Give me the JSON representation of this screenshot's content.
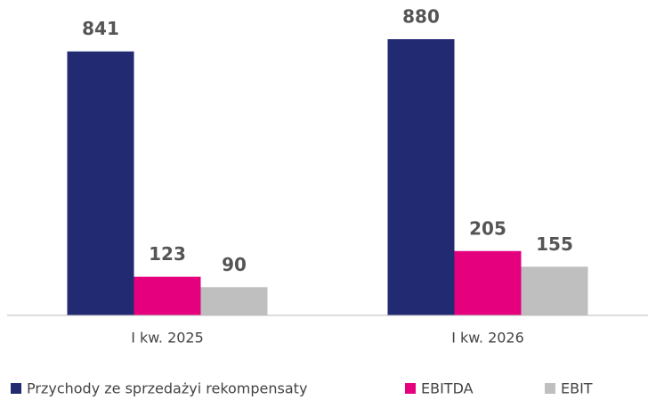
{
  "chart_data": {
    "type": "bar",
    "categories": [
      "I kw. 2025",
      "I kw. 2026"
    ],
    "series": [
      {
        "name": "Przychody ze sprzedażyi rekompensaty",
        "color": "#222a72",
        "values": [
          841,
          880
        ]
      },
      {
        "name": "EBITDA",
        "color": "#e5007e",
        "values": [
          123,
          205
        ]
      },
      {
        "name": "EBIT",
        "color": "#bfbfbf",
        "values": [
          90,
          155
        ]
      }
    ]
  }
}
